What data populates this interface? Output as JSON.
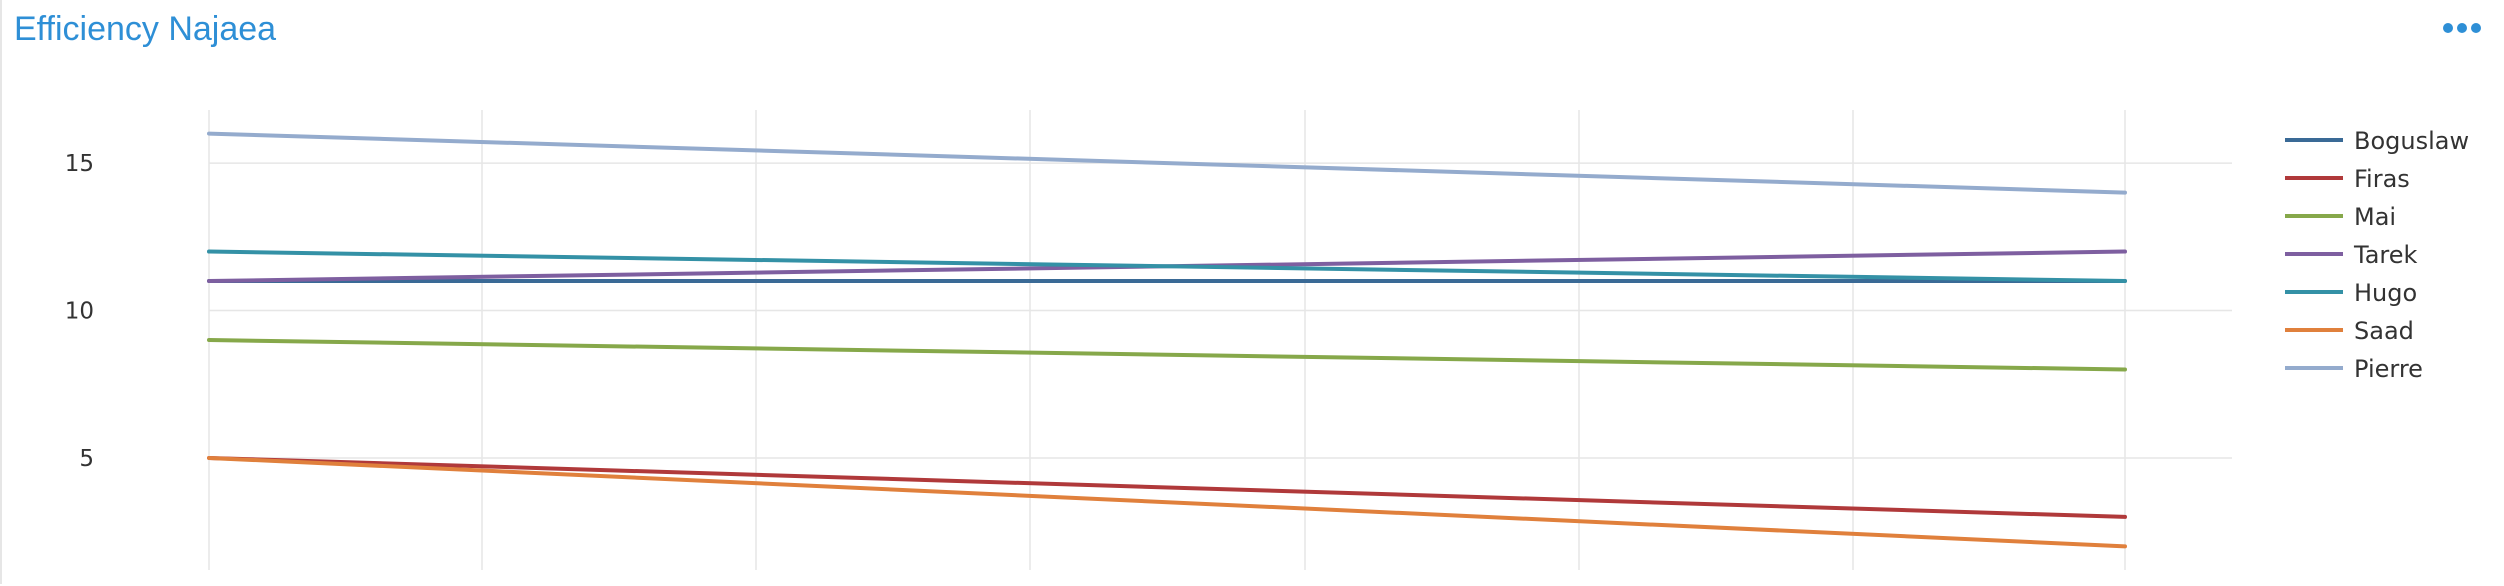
{
  "panel": {
    "title": "Efficiency Najaea",
    "menu_icon": "more-horizontal-icon"
  },
  "colors": {
    "title": "#2e8fd6",
    "grid": "#e6e6e6",
    "menu": "#2e8fd6"
  },
  "chart_data": {
    "type": "line",
    "title": "Efficiency Najaea",
    "xlabel": "",
    "ylabel": "",
    "x": [
      0,
      1
    ],
    "ylim": [
      1.2,
      16.8
    ],
    "yticks": [
      5,
      10,
      15
    ],
    "grid": true,
    "legend_position": "right",
    "series": [
      {
        "name": "Boguslaw",
        "color": "#3a6a96",
        "values": [
          11,
          11
        ]
      },
      {
        "name": "Firas",
        "color": "#b0393a",
        "values": [
          5,
          3
        ]
      },
      {
        "name": "Mai",
        "color": "#86a84a",
        "values": [
          9,
          8
        ]
      },
      {
        "name": "Tarek",
        "color": "#7e5fa0",
        "values": [
          11,
          12
        ]
      },
      {
        "name": "Hugo",
        "color": "#3491a6",
        "values": [
          12,
          11
        ]
      },
      {
        "name": "Saad",
        "color": "#e0803c",
        "values": [
          5,
          2
        ]
      },
      {
        "name": "Pierre",
        "color": "#94abcd",
        "values": [
          16,
          14
        ]
      }
    ]
  }
}
